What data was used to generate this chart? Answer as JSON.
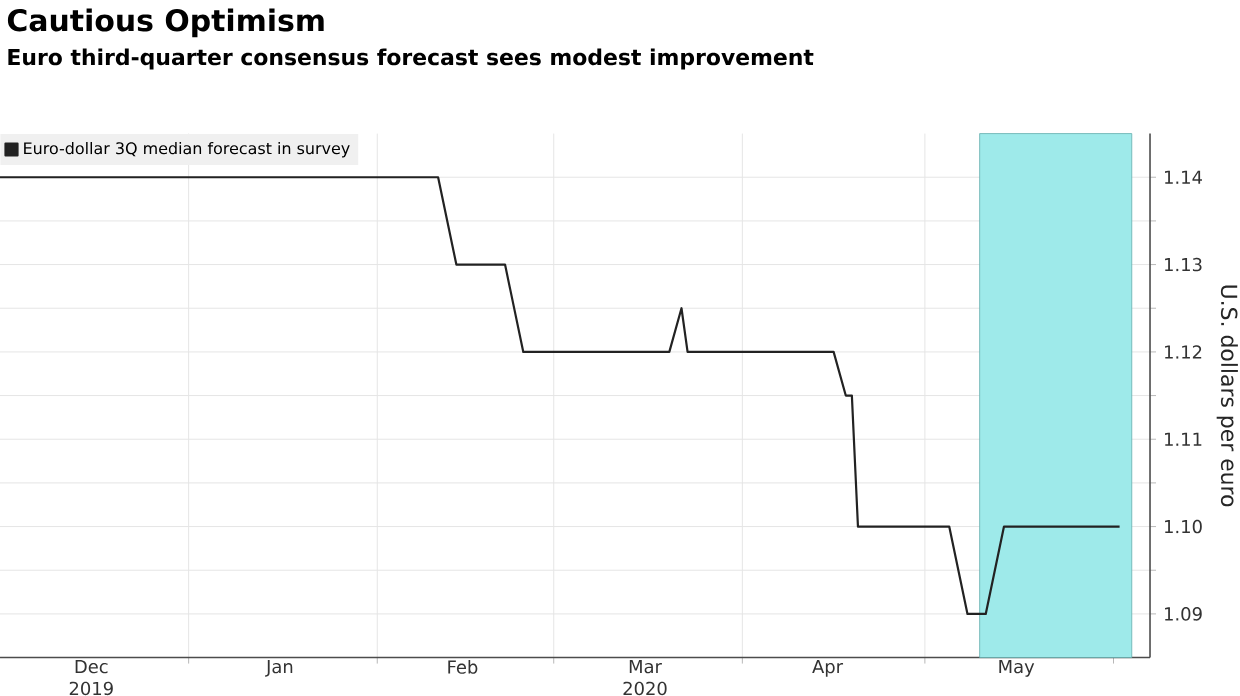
{
  "chart_data": {
    "type": "line",
    "title": "Cautious Optimism",
    "subtitle": "Euro third-quarter consensus forecast sees modest improvement",
    "ylabel": "U.S. dollars per euro",
    "series": [
      {
        "name": "Euro-dollar 3Q median forecast in survey",
        "color": "#222222",
        "x": [
          "2019-12-01",
          "2020-02-11",
          "2020-02-14",
          "2020-02-22",
          "2020-02-25",
          "2020-03-20",
          "2020-03-22",
          "2020-03-23",
          "2020-04-16",
          "2020-04-18",
          "2020-04-19",
          "2020-04-20",
          "2020-05-05",
          "2020-05-08",
          "2020-05-11",
          "2020-05-14",
          "2020-06-02"
        ],
        "values": [
          1.14,
          1.14,
          1.13,
          1.13,
          1.12,
          1.12,
          1.125,
          1.12,
          1.12,
          1.115,
          1.115,
          1.1,
          1.1,
          1.09,
          1.09,
          1.1,
          1.1
        ]
      }
    ],
    "xlim": [
      "2019-12-01",
      "2020-06-07"
    ],
    "xticks": [
      {
        "value": "2019-12-16",
        "label": "Dec 2019"
      },
      {
        "value": "2020-01-01",
        "label": null
      },
      {
        "value": "2020-01-16",
        "label": "Jan"
      },
      {
        "value": "2020-02-01",
        "label": null
      },
      {
        "value": "2020-02-15",
        "label": "Feb"
      },
      {
        "value": "2020-03-01",
        "label": null
      },
      {
        "value": "2020-03-16",
        "label": "Mar 2020"
      },
      {
        "value": "2020-04-01",
        "label": null
      },
      {
        "value": "2020-04-15",
        "label": "Apr"
      },
      {
        "value": "2020-05-01",
        "label": null
      },
      {
        "value": "2020-05-16",
        "label": "May"
      },
      {
        "value": "2020-06-01",
        "label": null
      }
    ],
    "ylim": [
      1.085,
      1.145
    ],
    "yticks": [
      1.09,
      {
        "value": 1.095,
        "label": null
      },
      {
        "value": 1.1,
        "label": "1.10"
      },
      {
        "value": 1.105,
        "label": null
      },
      1.11,
      {
        "value": 1.115,
        "label": null
      },
      1.12,
      {
        "value": 1.125,
        "label": null
      },
      1.13,
      {
        "value": 1.135,
        "label": null
      },
      1.14
    ],
    "bands": [
      {
        "axis": "x",
        "from": "2020-05-10",
        "to": "2020-06-04",
        "color": "#9eeaea"
      }
    ],
    "grid": true,
    "legend": "top left",
    "marker": "none",
    "line_style": "solid"
  }
}
